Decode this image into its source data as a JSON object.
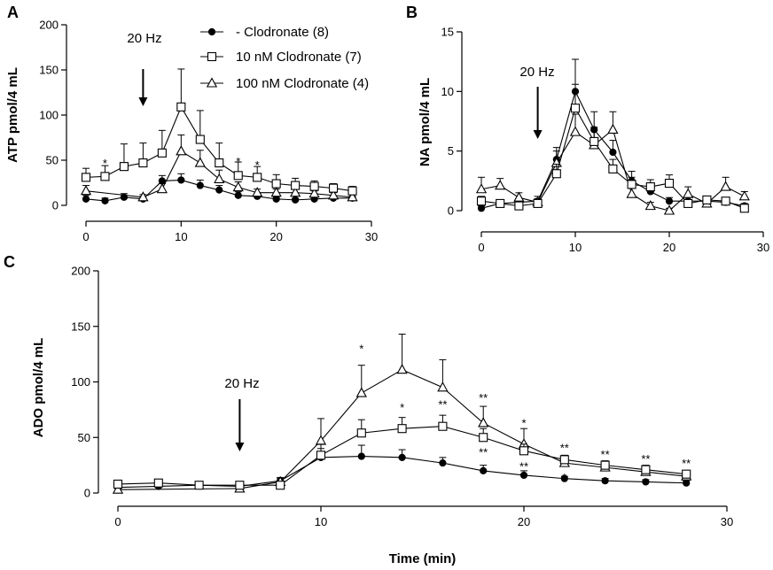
{
  "chart_data": [
    {
      "panel_label": "A",
      "type": "line",
      "ylabel": "ATP pmol/4 mL",
      "xlabel": "",
      "xlim": [
        0,
        30
      ],
      "ylim": [
        0,
        200
      ],
      "xticks": [
        0,
        10,
        20,
        30
      ],
      "yticks": [
        0,
        50,
        100,
        150,
        200
      ],
      "stimulus": {
        "label": "20 Hz",
        "x": 6
      },
      "legend": {
        "position": "top-right"
      },
      "series": [
        {
          "name": "- Clodronate (8)",
          "marker": "circle-filled",
          "x": [
            0,
            2,
            4,
            6,
            8,
            10,
            12,
            14,
            16,
            18,
            20,
            22,
            24,
            26,
            28
          ],
          "y": [
            7,
            5,
            9,
            7,
            27,
            28,
            22,
            17,
            11,
            10,
            7,
            6,
            7,
            8,
            8
          ],
          "err": [
            4,
            3,
            4,
            3,
            6,
            7,
            6,
            5,
            4,
            3,
            2,
            2,
            2,
            2,
            2
          ]
        },
        {
          "name": "10 nM Clodronate (7)",
          "marker": "square-open",
          "x": [
            0,
            2,
            4,
            6,
            8,
            10,
            12,
            14,
            16,
            18,
            20,
            22,
            24,
            26,
            28
          ],
          "y": [
            31,
            32,
            43,
            47,
            58,
            109,
            73,
            47,
            33,
            31,
            24,
            22,
            21,
            19,
            16
          ],
          "err": [
            10,
            12,
            25,
            22,
            25,
            42,
            32,
            22,
            15,
            12,
            10,
            8,
            6,
            5,
            5
          ]
        },
        {
          "name": "100 nM Clodronate (4)",
          "marker": "triangle-open",
          "x": [
            0,
            6,
            8,
            10,
            12,
            14,
            16,
            18,
            20,
            22,
            24,
            26,
            28
          ],
          "y": [
            16,
            9,
            18,
            60,
            47,
            29,
            20,
            14,
            14,
            14,
            13,
            11,
            9
          ],
          "err": [
            6,
            3,
            6,
            18,
            14,
            10,
            6,
            4,
            4,
            4,
            3,
            3,
            3
          ]
        }
      ],
      "annotations": [
        {
          "text": "*",
          "x": 2,
          "y": 48
        },
        {
          "text": "*",
          "x": 16,
          "y": 50
        },
        {
          "text": "*",
          "x": 18,
          "y": 46
        }
      ]
    },
    {
      "panel_label": "B",
      "type": "line",
      "ylabel": "NA pmol/4 mL",
      "xlabel": "",
      "xlim": [
        0,
        30
      ],
      "ylim": [
        0,
        15
      ],
      "xticks": [
        0,
        10,
        20,
        30
      ],
      "yticks": [
        0,
        5,
        10,
        15
      ],
      "stimulus": {
        "label": "20 Hz",
        "x": 6
      },
      "series": [
        {
          "name": "- Clodronate (8)",
          "marker": "circle-filled",
          "x": [
            0,
            2,
            4,
            6,
            8,
            10,
            12,
            14,
            16,
            18,
            20,
            22,
            24,
            26,
            28
          ],
          "y": [
            0.2,
            0.6,
            0.7,
            0.8,
            4.3,
            10.0,
            6.8,
            4.9,
            2.5,
            1.6,
            0.8,
            0.8,
            0.8,
            0.7,
            0.4
          ],
          "err": [
            0.2,
            0.3,
            0.3,
            0.4,
            1.0,
            2.7,
            1.5,
            1.0,
            0.8,
            0.5,
            0.3,
            0.3,
            0.3,
            0.3,
            0.2
          ]
        },
        {
          "name": "10 nM Clodronate (7)",
          "marker": "square-open",
          "x": [
            0,
            2,
            4,
            6,
            8,
            10,
            12,
            14,
            16,
            18,
            20,
            22,
            24,
            26,
            28
          ],
          "y": [
            0.8,
            0.6,
            0.4,
            0.6,
            3.1,
            8.6,
            5.8,
            3.5,
            2.2,
            2.0,
            2.3,
            0.6,
            0.9,
            0.8,
            0.2
          ],
          "err": [
            0.4,
            0.3,
            0.2,
            0.3,
            0.8,
            2.0,
            1.2,
            0.8,
            0.6,
            0.6,
            0.7,
            0.3,
            0.3,
            0.3,
            0.2
          ]
        },
        {
          "name": "100 nM Clodronate (4)",
          "marker": "triangle-open",
          "x": [
            0,
            2,
            4,
            6,
            8,
            10,
            12,
            14,
            16,
            18,
            20,
            22,
            24,
            26,
            28
          ],
          "y": [
            1.8,
            2.1,
            1.1,
            0.7,
            4.0,
            6.6,
            5.5,
            6.8,
            1.4,
            0.4,
            0.0,
            1.4,
            0.6,
            2.0,
            1.2
          ],
          "err": [
            1.0,
            0.6,
            0.4,
            0.3,
            1.0,
            1.5,
            1.2,
            1.5,
            0.5,
            0.3,
            0.2,
            0.6,
            0.4,
            0.8,
            0.4
          ]
        }
      ]
    },
    {
      "panel_label": "C",
      "type": "line",
      "ylabel": "ADO pmol/4 mL",
      "xlabel": "Time (min)",
      "xlim": [
        0,
        30
      ],
      "ylim": [
        0,
        200
      ],
      "xticks": [
        0,
        10,
        20,
        30
      ],
      "yticks": [
        0,
        50,
        100,
        150,
        200
      ],
      "stimulus": {
        "label": "20 Hz",
        "x": 6
      },
      "series": [
        {
          "name": "- Clodronate (8)",
          "marker": "circle-filled",
          "x": [
            0,
            2,
            4,
            6,
            8,
            10,
            12,
            14,
            16,
            18,
            20,
            22,
            24,
            26,
            28
          ],
          "y": [
            5,
            6,
            7,
            6,
            11,
            32,
            33,
            32,
            27,
            20,
            16,
            13,
            11,
            10,
            9
          ],
          "err": [
            2,
            2,
            2,
            2,
            3,
            8,
            10,
            7,
            5,
            5,
            4,
            2,
            2,
            2,
            2
          ]
        },
        {
          "name": "10 nM Clodronate (7)",
          "marker": "square-open",
          "x": [
            0,
            2,
            4,
            6,
            8,
            10,
            12,
            14,
            16,
            18,
            20,
            22,
            24,
            26,
            28
          ],
          "y": [
            8,
            9,
            7,
            7,
            7,
            34,
            54,
            58,
            60,
            50,
            38,
            30,
            25,
            21,
            17
          ],
          "err": [
            2,
            2,
            2,
            2,
            2,
            10,
            12,
            10,
            10,
            8,
            6,
            4,
            4,
            4,
            3
          ]
        },
        {
          "name": "100 nM Clodronate (4)",
          "marker": "triangle-open",
          "x": [
            0,
            6,
            8,
            10,
            12,
            14,
            16,
            18,
            20,
            22,
            24,
            26,
            28
          ],
          "y": [
            3,
            4,
            10,
            47,
            90,
            111,
            95,
            63,
            44,
            27,
            23,
            19,
            15
          ],
          "err": [
            2,
            2,
            3,
            20,
            25,
            32,
            25,
            15,
            14,
            4,
            3,
            3,
            3
          ]
        }
      ],
      "annotations": [
        {
          "text": "*",
          "x": 12,
          "y": 131
        },
        {
          "text": "*",
          "x": 14,
          "y": 78
        },
        {
          "text": "**",
          "x": 16,
          "y": 81
        },
        {
          "text": "**",
          "x": 18,
          "y": 87
        },
        {
          "text": "**",
          "x": 18,
          "y": 38
        },
        {
          "text": "*",
          "x": 20,
          "y": 64
        },
        {
          "text": "**",
          "x": 20,
          "y": 25
        },
        {
          "text": "**",
          "x": 22,
          "y": 42
        },
        {
          "text": "*",
          "x": 22,
          "y": 15
        },
        {
          "text": "**",
          "x": 24,
          "y": 36
        },
        {
          "text": "**",
          "x": 26,
          "y": 32
        },
        {
          "text": "**",
          "x": 28,
          "y": 28
        }
      ]
    }
  ]
}
